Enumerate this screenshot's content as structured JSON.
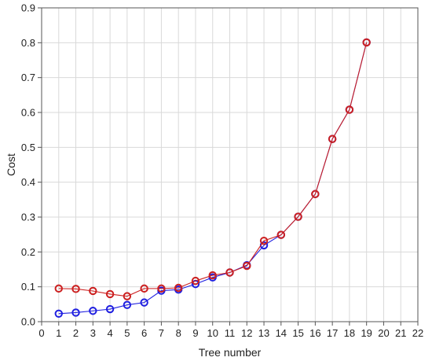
{
  "chart_data": {
    "type": "line",
    "title": "",
    "xlabel": "Tree number",
    "ylabel": "Cost",
    "xlim": [
      0,
      22
    ],
    "ylim": [
      0,
      0.9
    ],
    "x_ticks": [
      0,
      1,
      2,
      3,
      4,
      5,
      6,
      7,
      8,
      9,
      10,
      11,
      12,
      13,
      14,
      15,
      16,
      17,
      18,
      19,
      20,
      21,
      22
    ],
    "y_ticks": [
      0.0,
      0.1,
      0.2,
      0.3,
      0.4,
      0.5,
      0.6,
      0.7,
      0.8,
      0.9
    ],
    "y_tick_labels": [
      "0.0",
      "0.1",
      "0.2",
      "0.3",
      "0.4",
      "0.5",
      "0.6",
      "0.7",
      "0.8",
      "0.9"
    ],
    "grid": true,
    "legend": "none",
    "series": [
      {
        "color": "#1f1fe0",
        "marker": "open-circle",
        "x": [
          1,
          2,
          3,
          4,
          5,
          6,
          7,
          8,
          9,
          10,
          11,
          12,
          13,
          14,
          15,
          16,
          17,
          18,
          19
        ],
        "values": [
          0.023,
          0.026,
          0.031,
          0.036,
          0.048,
          0.055,
          0.089,
          0.092,
          0.108,
          0.127,
          0.141,
          0.162,
          0.219,
          0.249,
          0.301,
          0.366,
          0.524,
          0.608,
          0.801
        ]
      },
      {
        "color": "#cc2020",
        "marker": "open-circle",
        "x": [
          1,
          2,
          3,
          4,
          5,
          6,
          7,
          8,
          9,
          10,
          11,
          12,
          13,
          14,
          15,
          16,
          17,
          18,
          19
        ],
        "values": [
          0.095,
          0.094,
          0.088,
          0.079,
          0.073,
          0.095,
          0.095,
          0.097,
          0.117,
          0.133,
          0.141,
          0.16,
          0.232,
          0.249,
          0.301,
          0.366,
          0.524,
          0.608,
          0.801
        ]
      }
    ]
  }
}
